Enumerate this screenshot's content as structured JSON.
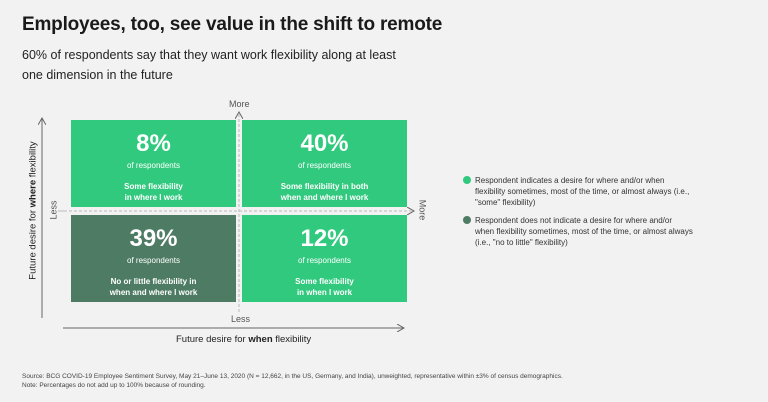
{
  "header": {
    "title": "Employees, too, see value in the shift to remote",
    "subtitle": "60% of respondents say that they want work flexibility along at least one dimension in the future"
  },
  "chart_data": {
    "type": "quadrant",
    "x_axis": {
      "prefix": "Future desire for ",
      "emphasis": "when",
      "suffix": " flexibility",
      "low": "Less",
      "high": "More"
    },
    "y_axis": {
      "prefix": "Future desire for ",
      "emphasis": "where",
      "suffix": " flexibility",
      "low": "Less",
      "high": "More"
    },
    "quadrants": [
      {
        "position": "top-left",
        "value": "8%",
        "sublabel": "of respondents",
        "label_line1": "Some flexibility",
        "label_line2": "in where I work",
        "category": "some"
      },
      {
        "position": "top-right",
        "value": "40%",
        "sublabel": "of respondents",
        "label_line1": "Some flexibility in both",
        "label_line2": "when and where I work",
        "category": "some"
      },
      {
        "position": "bottom-left",
        "value": "39%",
        "sublabel": "of respondents",
        "label_line1": "No or little flexibility in",
        "label_line2": "when and where I work",
        "category": "none"
      },
      {
        "position": "bottom-right",
        "value": "12%",
        "sublabel": "of respondents",
        "label_line1": "Some flexibility",
        "label_line2": "in when I work",
        "category": "some"
      }
    ],
    "legend": [
      {
        "color": "#31c97e",
        "text": "Respondent indicates a desire for where and/or when flexibility sometimes, most of the time, or almost always (i.e., \"some\" flexibility)"
      },
      {
        "color": "#4e7b63",
        "text": "Respondent does not indicate a desire for where and/or when flexibility sometimes, most of the time, or almost always (i.e., \"no to little\" flexibility)"
      }
    ]
  },
  "colors": {
    "some": "#31c97e",
    "none": "#4e7b63"
  },
  "footnotes": {
    "source": "Source: BCG COVID-19 Employee Sentiment Survey, May 21–June 13, 2020  (N = 12,662, in the US, Germany, and India), unweighted, representative within ±3% of census demographics.",
    "note": "Note: Percentages do not add up to 100% because of rounding."
  }
}
